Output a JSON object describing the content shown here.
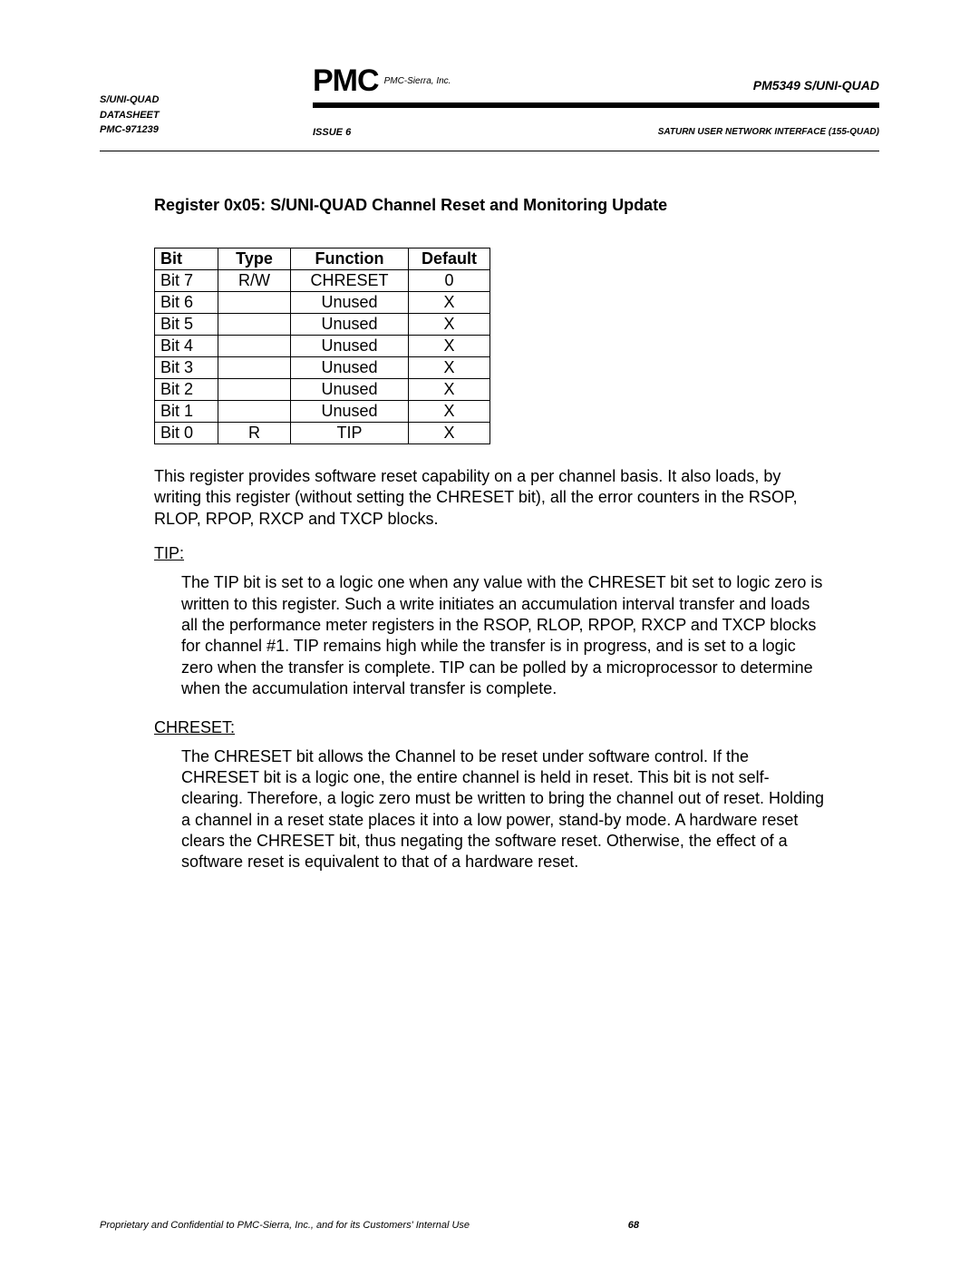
{
  "header": {
    "left_line1": "S/UNI-QUAD",
    "left_line2": "DATASHEET",
    "left_line3": "PMC-971239",
    "issue": "ISSUE 6",
    "logo_text": "PMC",
    "logo_sub": "PMC-Sierra, Inc.",
    "product": "PM5349 S/UNI-QUAD",
    "right_sub": "SATURN USER NETWORK INTERFACE (155-QUAD)"
  },
  "title": "Register 0x05: S/UNI-QUAD Channel Reset and Monitoring Update",
  "table": {
    "headers": {
      "bit": "Bit",
      "type": "Type",
      "func": "Function",
      "def": "Default"
    },
    "rows": [
      {
        "bit": "Bit 7",
        "type": "R/W",
        "func": "CHRESET",
        "def": "0"
      },
      {
        "bit": "Bit 6",
        "type": "",
        "func": "Unused",
        "def": "X"
      },
      {
        "bit": "Bit 5",
        "type": "",
        "func": "Unused",
        "def": "X"
      },
      {
        "bit": "Bit 4",
        "type": "",
        "func": "Unused",
        "def": "X"
      },
      {
        "bit": "Bit 3",
        "type": "",
        "func": "Unused",
        "def": "X"
      },
      {
        "bit": "Bit 2",
        "type": "",
        "func": "Unused",
        "def": "X"
      },
      {
        "bit": "Bit 1",
        "type": "",
        "func": "Unused",
        "def": "X"
      },
      {
        "bit": "Bit 0",
        "type": "R",
        "func": "TIP",
        "def": "X"
      }
    ]
  },
  "intro_para": "This register provides software reset capability on a per channel basis. It also loads, by writing this register (without setting the CHRESET bit), all the error counters in the RSOP, RLOP, RPOP, RXCP and TXCP blocks.",
  "tip_heading": "TIP:",
  "tip_para": "The TIP bit is set to a logic one when any value with the CHRESET bit set to logic zero is written to this register.  Such a write initiates an accumulation interval transfer and loads all the performance meter registers in the RSOP, RLOP, RPOP, RXCP and TXCP blocks for channel #1.  TIP remains high while the transfer is in progress, and is set to a logic zero when the transfer is complete.  TIP can be polled by a microprocessor to determine when the accumulation interval transfer is complete.",
  "chreset_heading": "CHRESET:",
  "chreset_para": "The CHRESET bit allows the Channel to be reset under software control.  If the CHRESET bit is a logic one, the entire channel is held in reset.  This bit is not self-clearing.  Therefore, a logic zero must be written to bring the channel out of reset.  Holding a channel in a reset state places it into a low power, stand-by mode.  A hardware reset clears the CHRESET bit, thus negating the software reset.  Otherwise, the effect of a software reset is equivalent to that of a hardware reset.",
  "footer": {
    "text": "Proprietary and Confidential to PMC-Sierra, Inc., and for its Customers' Internal Use",
    "page": "68"
  }
}
